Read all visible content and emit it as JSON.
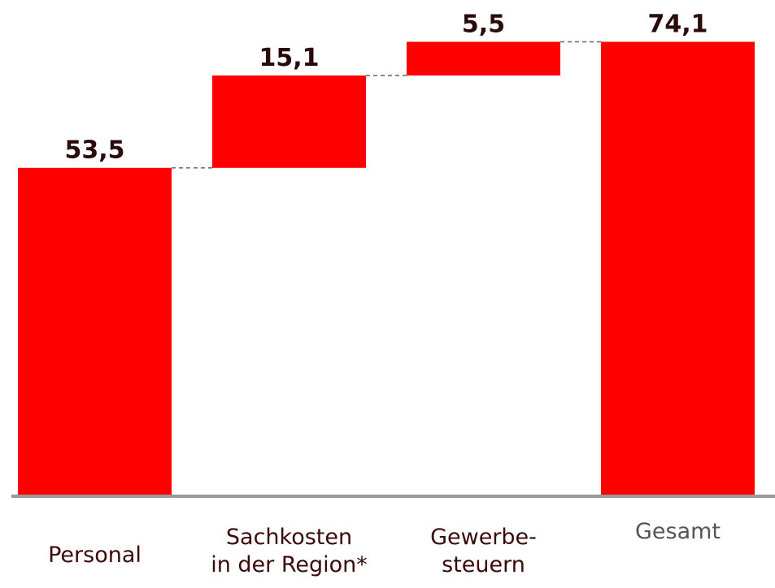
{
  "chart_data": {
    "type": "waterfall",
    "categories": [
      "Personal",
      "Sachkosten\nin der Region*",
      "Gewerbe-\nsteuern",
      "Gesamt"
    ],
    "values": [
      53.5,
      15.1,
      5.5,
      74.1
    ],
    "value_labels": [
      "53,5",
      "15,1",
      "5,5",
      "74,1"
    ],
    "color": "#ff0000",
    "ylim": [
      0,
      80
    ]
  }
}
